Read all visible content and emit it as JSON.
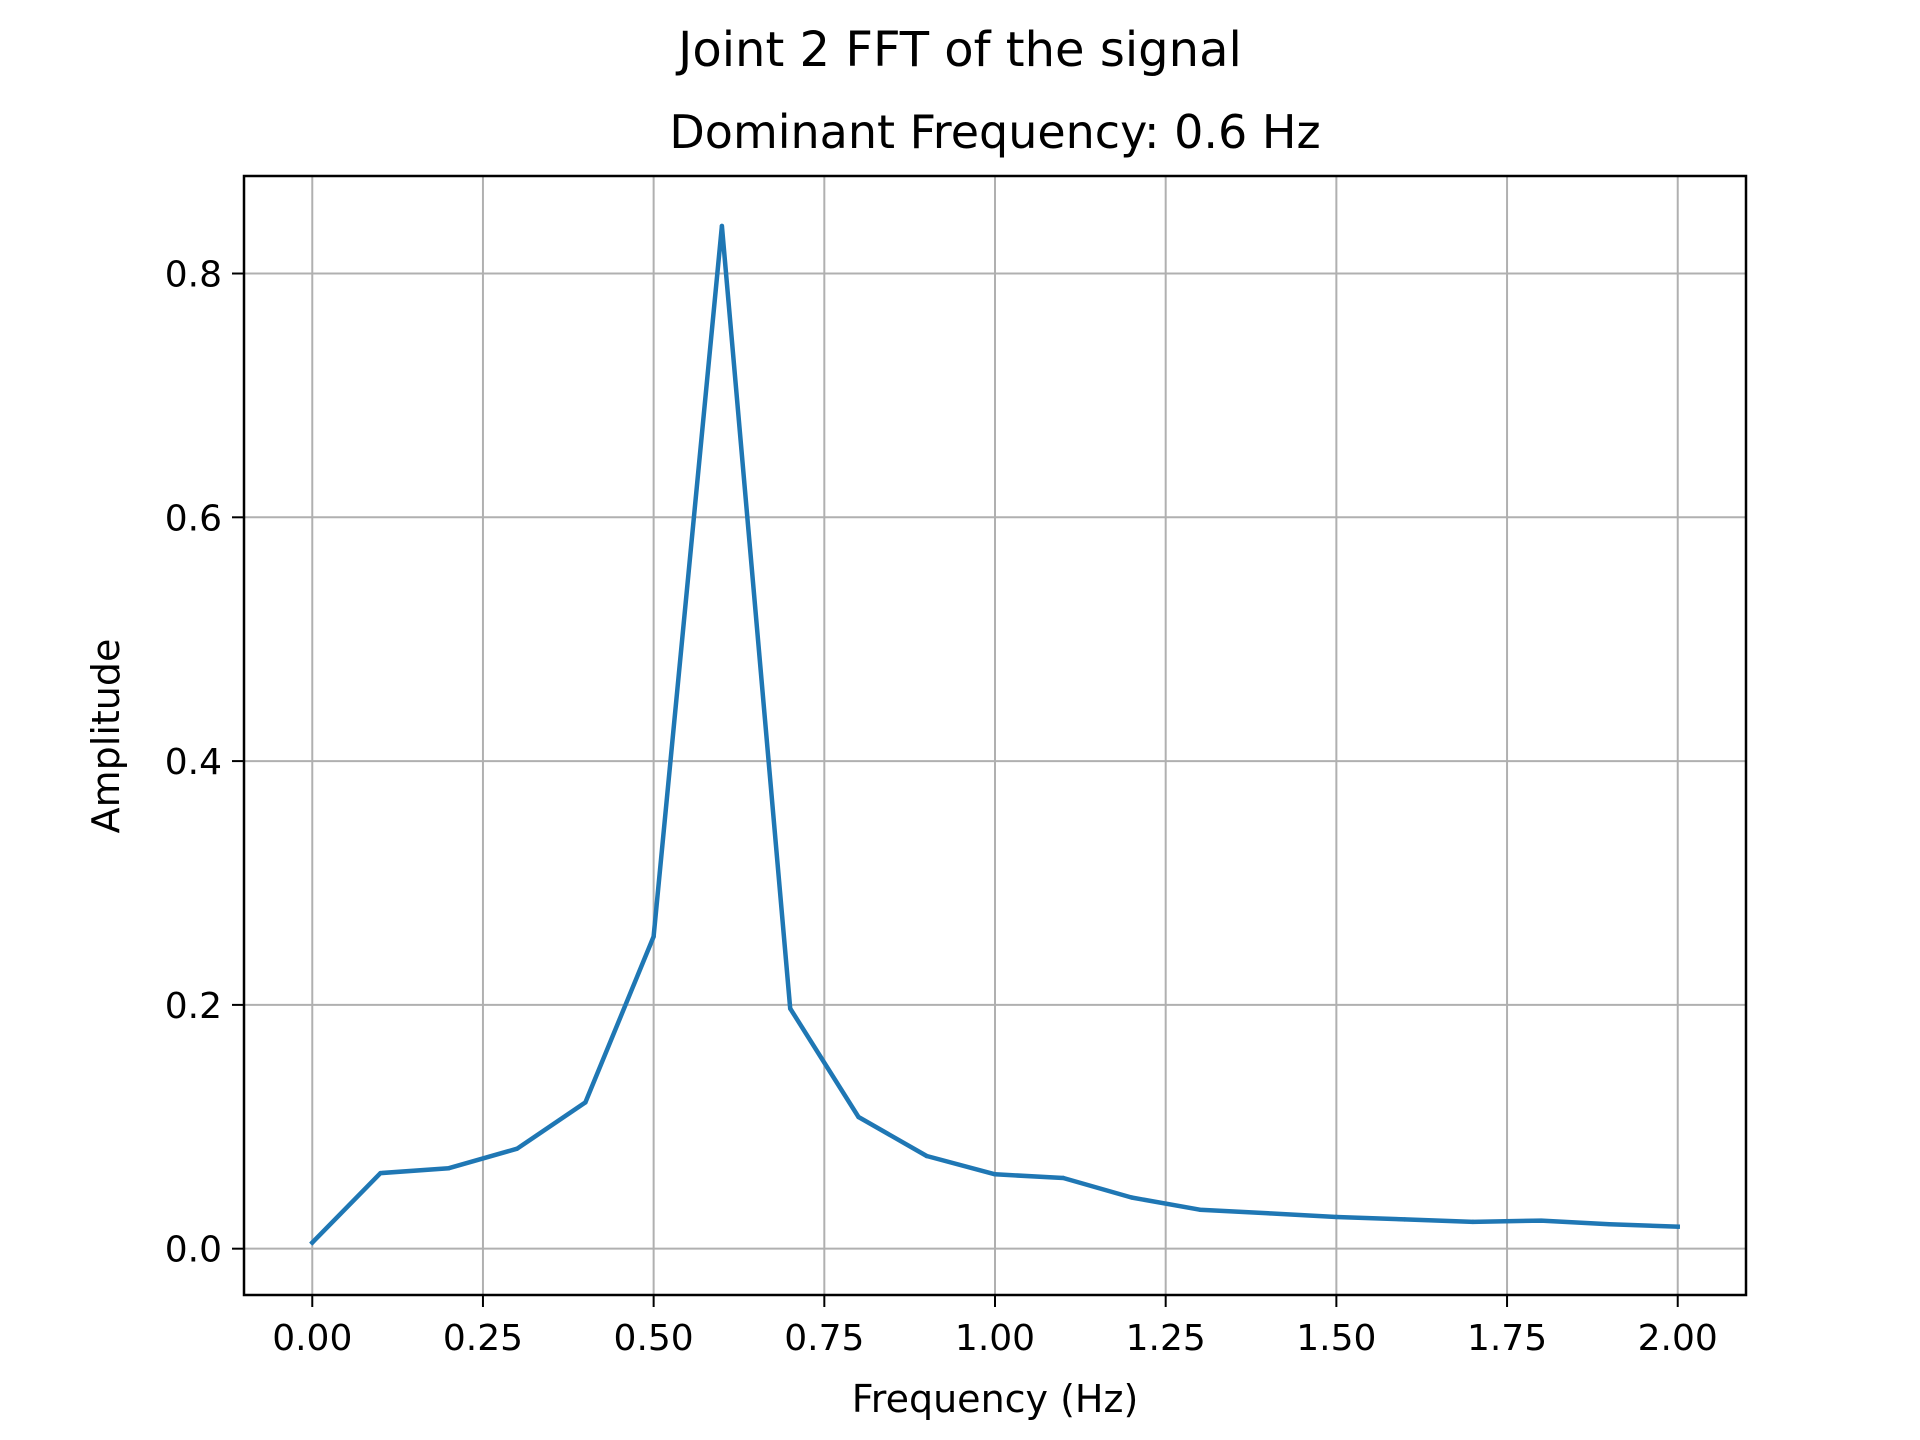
{
  "chart_data": {
    "type": "line",
    "suptitle": "Joint 2 FFT of the signal",
    "title": "Dominant Frequency: 0.6 Hz",
    "xlabel": "Frequency (Hz)",
    "ylabel": "Amplitude",
    "xlim": [
      -0.1,
      2.1
    ],
    "ylim": [
      -0.038,
      0.88
    ],
    "grid": true,
    "line_color": "#1f77b4",
    "grid_color": "#b0b0b0",
    "x_ticks": [
      "0.00",
      "0.25",
      "0.50",
      "0.75",
      "1.00",
      "1.25",
      "1.50",
      "1.75",
      "2.00"
    ],
    "y_ticks": [
      "0.0",
      "0.2",
      "0.4",
      "0.6",
      "0.8"
    ],
    "series": [
      {
        "x": [
          0.0,
          0.1,
          0.2,
          0.3,
          0.4,
          0.5,
          0.6,
          0.7,
          0.8,
          0.9,
          1.0,
          1.1,
          1.2,
          1.3,
          1.4,
          1.5,
          1.6,
          1.7,
          1.8,
          1.9,
          2.0
        ],
        "y": [
          0.005,
          0.062,
          0.066,
          0.082,
          0.12,
          0.256,
          0.839,
          0.197,
          0.108,
          0.076,
          0.061,
          0.058,
          0.042,
          0.032,
          0.029,
          0.026,
          0.024,
          0.022,
          0.023,
          0.02,
          0.018
        ]
      }
    ]
  }
}
